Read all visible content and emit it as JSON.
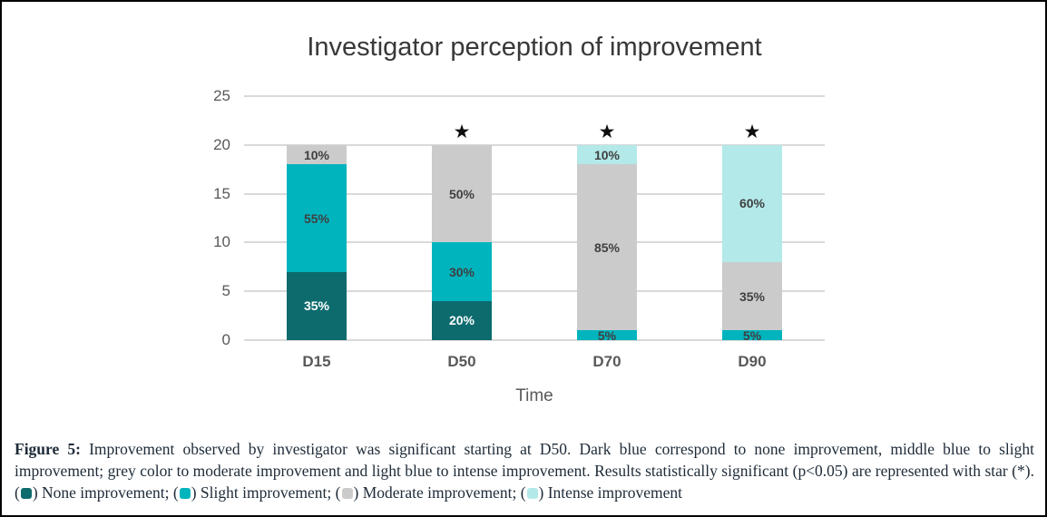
{
  "colors": {
    "none": "#0d6b6e",
    "slight": "#00b4be",
    "moderate": "#cbcbcb",
    "intense": "#b3e9e9",
    "grid": "#d9d9d9",
    "axis_text": "#595959",
    "label_dark": "#404040",
    "label_light": "#ffffff",
    "title_text": "#383838",
    "star": "#0d0d0d"
  },
  "chart_data": {
    "type": "bar",
    "stacked": true,
    "title": "Investigator perception of improvement",
    "xlabel": "Time",
    "ylabel": "",
    "ylim": [
      0,
      25
    ],
    "yticks": [
      0,
      5,
      10,
      15,
      20,
      25
    ],
    "grid": true,
    "legend_position": "caption",
    "categories": [
      "D15",
      "D50",
      "D70",
      "D90"
    ],
    "series": [
      {
        "name": "None improvement",
        "color_key": "none",
        "label_color": "#ffffff",
        "values": [
          7,
          4,
          0,
          0
        ],
        "labels": [
          "35%",
          "20%",
          "",
          ""
        ]
      },
      {
        "name": "Slight improvement",
        "color_key": "slight",
        "label_color": "#404040",
        "values": [
          11,
          6,
          1,
          1
        ],
        "labels": [
          "55%",
          "30%",
          "5%",
          "5%"
        ]
      },
      {
        "name": "Moderate improvement",
        "color_key": "moderate",
        "label_color": "#404040",
        "values": [
          2,
          10,
          17,
          7
        ],
        "labels": [
          "10%",
          "50%",
          "85%",
          "35%"
        ]
      },
      {
        "name": "Intense improvement",
        "color_key": "intense",
        "label_color": "#404040",
        "values": [
          0,
          0,
          2,
          12
        ],
        "labels": [
          "",
          "",
          "10%",
          "60%"
        ]
      }
    ],
    "significant": [
      false,
      true,
      true,
      true
    ],
    "star_symbol": "★"
  },
  "caption": {
    "figure_label": "Figure 5:",
    "body": " Improvement observed by investigator was significant starting at D50. Dark blue correspond to none improvement, middle blue to slight improvement; grey color to moderate improvement and light blue to intense improvement. Results statistically significant (p<0.05) are represented with star (*). ",
    "legend": [
      {
        "label": "None improvement",
        "color_key": "none"
      },
      {
        "label": "Slight improvement",
        "color_key": "slight"
      },
      {
        "label": "Moderate improvement",
        "color_key": "moderate"
      },
      {
        "label": "Intense improvement",
        "color_key": "intense"
      }
    ],
    "legend_separator": "; "
  }
}
